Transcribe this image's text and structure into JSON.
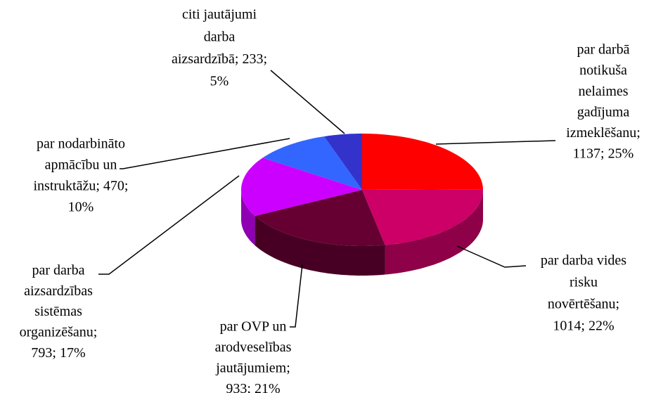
{
  "chart_data": {
    "type": "pie",
    "labels": [
      [
        "par darbā",
        "notikuša",
        "nelaimes",
        "gadījuma",
        "izmeklēšanu;",
        "1137; 25%"
      ],
      [
        "par darba vides",
        "risku",
        "novērtēšanu;",
        "1014; 22%"
      ],
      [
        "par OVP un",
        "arodveselības",
        "jautājumiem;",
        "933; 21%"
      ],
      [
        "par darba",
        "aizsardzības",
        "sistēmas",
        "organizēšanu;",
        "793; 17%"
      ],
      [
        "par nodarbināto",
        "apmācību un",
        "instruktāžu; 470;",
        "10%"
      ],
      [
        "citi jautājumi",
        "darba",
        "aizsardzībā; 233;",
        "5%"
      ]
    ],
    "values": [
      1137,
      1014,
      933,
      793,
      470,
      233
    ],
    "colors": [
      "#ff0000",
      "#cc0066",
      "#660033",
      "#cc00ff",
      "#3366ff",
      "#3333cc"
    ]
  }
}
